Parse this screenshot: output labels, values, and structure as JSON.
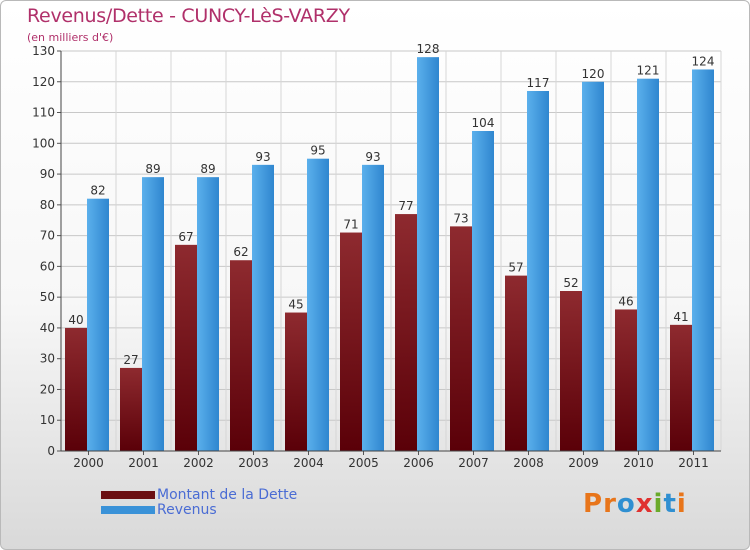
{
  "header": {
    "title": "Revenus/Dette - CUNCY-LèS-VARZY",
    "unit_note": "(en milliers d'€)"
  },
  "logo": {
    "letters": [
      "P",
      "r",
      "o",
      "x",
      "i",
      "t",
      "i"
    ]
  },
  "colors": {
    "dette": "#6b0f12",
    "revenus": "#3a92d8",
    "title": "#b0306a",
    "legend_text": "#4a6cd4",
    "logo": [
      "#e8751a",
      "#e8751a",
      "#2f8fd1",
      "#e0312f",
      "#6aaa2a",
      "#2f8fd1",
      "#e8751a"
    ]
  },
  "chart_data": {
    "type": "bar",
    "title": "Revenus/Dette - CUNCY-LèS-VARZY",
    "subtitle": "(en milliers d'€)",
    "categories": [
      "2000",
      "2001",
      "2002",
      "2003",
      "2004",
      "2005",
      "2006",
      "2007",
      "2008",
      "2009",
      "2010",
      "2011"
    ],
    "series": [
      {
        "name": "Montant de la Dette",
        "values": [
          40,
          27,
          67,
          62,
          45,
          71,
          77,
          73,
          57,
          52,
          46,
          41
        ]
      },
      {
        "name": "Revenus",
        "values": [
          82,
          89,
          89,
          93,
          95,
          93,
          128,
          104,
          117,
          120,
          121,
          124
        ]
      }
    ],
    "ylim": [
      0,
      130
    ],
    "yticks": [
      0,
      10,
      20,
      30,
      40,
      50,
      60,
      70,
      80,
      90,
      100,
      110,
      120,
      130
    ],
    "grid": true,
    "legend_position": "bottom-left",
    "data_labels": true
  }
}
